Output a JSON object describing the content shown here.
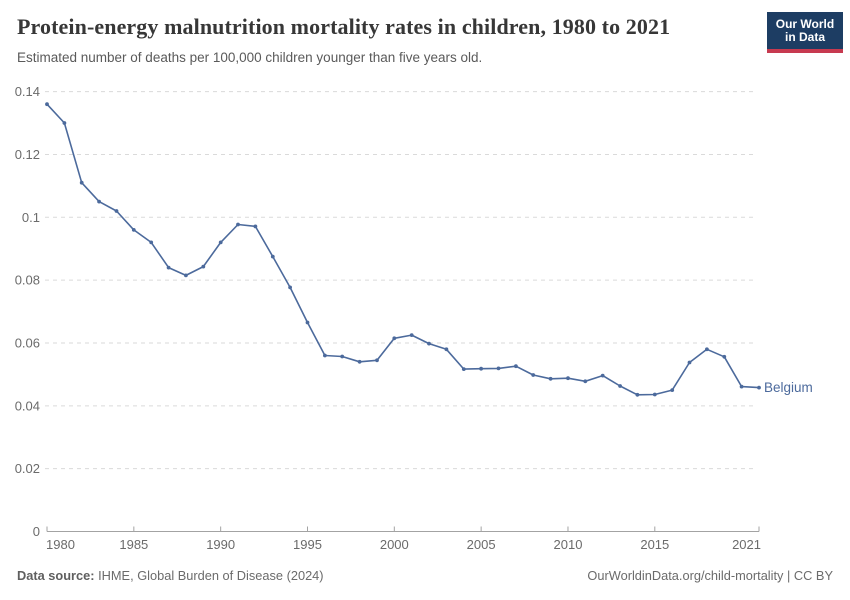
{
  "header": {
    "title": "Protein-energy malnutrition mortality rates in children, 1980 to 2021",
    "subtitle": "Estimated number of deaths per 100,000 children younger than five years old.",
    "logo": {
      "line1": "Our World",
      "line2": "in Data",
      "bg_color": "#1d3d63",
      "accent_color": "#c73a50"
    }
  },
  "chart_data": {
    "type": "line",
    "title": "Protein-energy malnutrition mortality rates in children, 1980 to 2021",
    "subtitle": "Estimated number of deaths per 100,000 children younger than five years old.",
    "x": [
      1980,
      1981,
      1982,
      1983,
      1984,
      1985,
      1986,
      1987,
      1988,
      1989,
      1990,
      1991,
      1992,
      1993,
      1994,
      1995,
      1996,
      1997,
      1998,
      1999,
      2000,
      2001,
      2002,
      2003,
      2004,
      2005,
      2006,
      2007,
      2008,
      2009,
      2010,
      2011,
      2012,
      2013,
      2014,
      2015,
      2016,
      2017,
      2018,
      2019,
      2020,
      2021
    ],
    "series": [
      {
        "name": "Belgium",
        "color": "#4C6A9C",
        "values": [
          0.136,
          0.13,
          0.111,
          0.105,
          0.102,
          0.096,
          0.092,
          0.084,
          0.0815,
          0.0843,
          0.092,
          0.0977,
          0.0971,
          0.0875,
          0.0777,
          0.0665,
          0.056,
          0.0557,
          0.054,
          0.0545,
          0.0615,
          0.0625,
          0.0598,
          0.058,
          0.0517,
          0.0518,
          0.0519,
          0.0526,
          0.0498,
          0.0486,
          0.0488,
          0.0478,
          0.0496,
          0.0463,
          0.0435,
          0.0436,
          0.045,
          0.0538,
          0.058,
          0.0556,
          0.0461,
          0.0458
        ]
      }
    ],
    "xlabel": "",
    "ylabel": "",
    "ylim": [
      0,
      0.14
    ],
    "yticks": [
      0,
      0.02,
      0.04,
      0.06,
      0.08,
      0.1,
      0.12,
      0.14
    ],
    "ytick_labels": [
      "0",
      "0.02",
      "0.04",
      "0.06",
      "0.08",
      "0.1",
      "0.12",
      "0.14"
    ],
    "xticks": [
      1980,
      1985,
      1990,
      1995,
      2000,
      2005,
      2010,
      2015,
      2021
    ],
    "grid": "horizontal-dashed",
    "legend": "line-end-label"
  },
  "footer": {
    "source_label": "Data source:",
    "source_text": " IHME, Global Burden of Disease (2024)",
    "link_text": "OurWorldinData.org/child-mortality | CC BY"
  }
}
